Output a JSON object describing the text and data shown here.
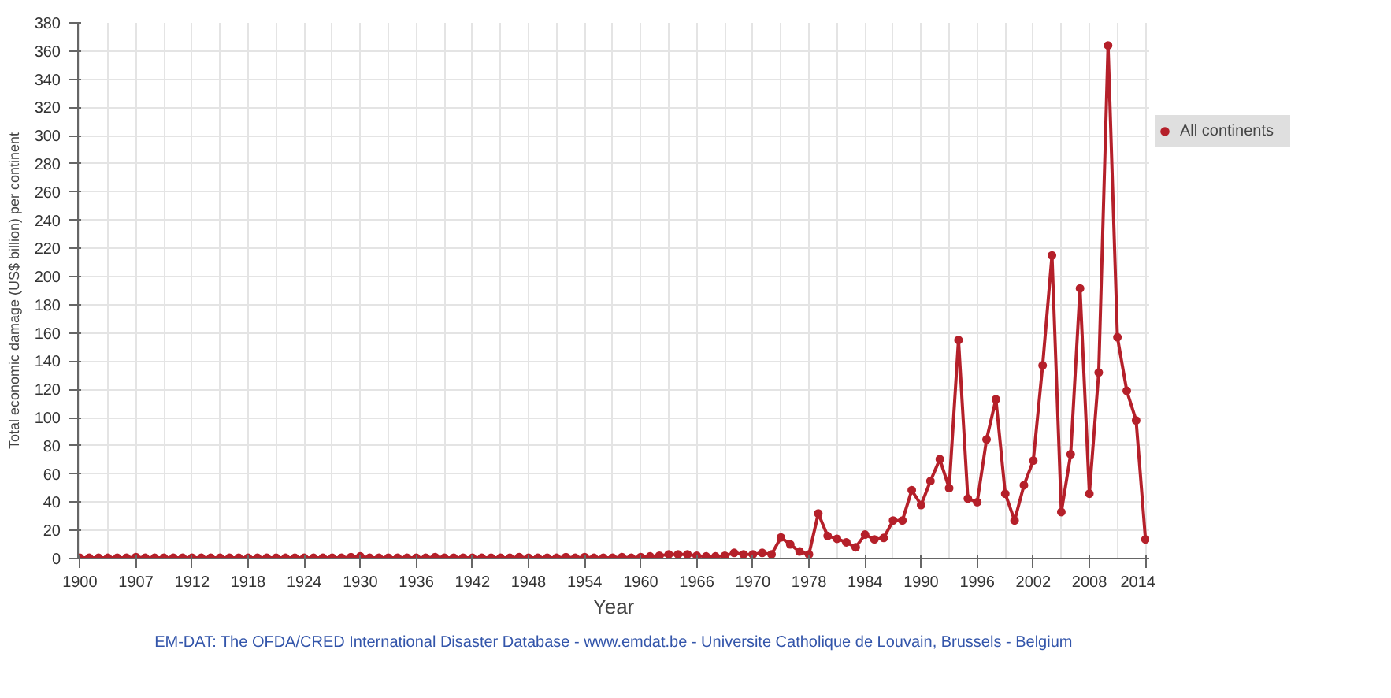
{
  "chart_data": {
    "type": "line",
    "xlabel": "Year",
    "ylabel": "Total economic damage (US$ billion) per continent",
    "categories": [
      "1900",
      null,
      null,
      null,
      null,
      null,
      "1907",
      null,
      null,
      null,
      null,
      null,
      "1912",
      null,
      null,
      null,
      null,
      null,
      "1918",
      null,
      null,
      null,
      null,
      null,
      "1924",
      null,
      null,
      null,
      null,
      null,
      "1930",
      null,
      null,
      null,
      null,
      null,
      "1936",
      null,
      null,
      null,
      null,
      null,
      "1942",
      null,
      null,
      null,
      null,
      null,
      "1948",
      null,
      null,
      null,
      null,
      null,
      "1954",
      null,
      null,
      null,
      null,
      null,
      "1960",
      null,
      null,
      null,
      null,
      null,
      "1966",
      null,
      null,
      null,
      null,
      null,
      "1970",
      null,
      null,
      null,
      null,
      null,
      "1978",
      null,
      null,
      null,
      null,
      null,
      "1984",
      null,
      null,
      null,
      null,
      null,
      "1990",
      null,
      null,
      null,
      null,
      null,
      "1996",
      null,
      null,
      null,
      null,
      null,
      "2002",
      null,
      null,
      null,
      null,
      null,
      "2008",
      null,
      null,
      null,
      null,
      null,
      "2014"
    ],
    "series": [
      {
        "name": "All continents",
        "color": "#b5202a",
        "values": [
          0.5,
          0.5,
          0.5,
          0.5,
          0.5,
          0.5,
          1,
          0.5,
          0.5,
          0.5,
          0.5,
          0.5,
          0.5,
          0.5,
          0.5,
          0.5,
          0.5,
          0.5,
          0.5,
          0.5,
          0.5,
          0.5,
          0.5,
          0.5,
          0.5,
          0.5,
          0.5,
          0.5,
          0.5,
          1,
          1.5,
          0.5,
          0.5,
          0.5,
          0.5,
          0.5,
          0.5,
          0.5,
          1,
          0.5,
          0.5,
          0.5,
          0.5,
          0.5,
          0.5,
          0.5,
          0.5,
          1,
          0.5,
          0.5,
          0.5,
          0.5,
          1,
          0.5,
          1,
          0.5,
          0.5,
          0.5,
          1,
          0.5,
          1,
          1.5,
          2,
          3,
          3,
          3,
          2,
          1.5,
          1.5,
          2,
          4,
          3,
          3,
          4,
          3,
          15,
          10,
          5,
          3,
          32,
          16,
          14,
          11.5,
          8,
          17,
          13.6,
          14.6,
          27,
          27,
          48.5,
          38,
          55,
          70.5,
          50,
          155,
          42.6,
          40,
          84.5,
          113,
          46,
          27,
          52,
          69.5,
          137,
          215,
          33,
          74,
          191.6,
          46,
          132,
          364,
          157,
          119,
          98,
          13.6
        ]
      }
    ],
    "ylim": [
      0,
      380
    ],
    "yticks": [
      0,
      20,
      40,
      60,
      80,
      100,
      120,
      140,
      160,
      180,
      200,
      220,
      240,
      260,
      280,
      300,
      320,
      340,
      360,
      380
    ],
    "grid": true,
    "legend": "right",
    "marker": "circle",
    "line_style": "solid",
    "annotations": [
      "EM-DAT: The OFDA/CRED International Disaster Database - www.emdat.be - Universite Catholique de Louvain, Brussels - Belgium"
    ]
  }
}
